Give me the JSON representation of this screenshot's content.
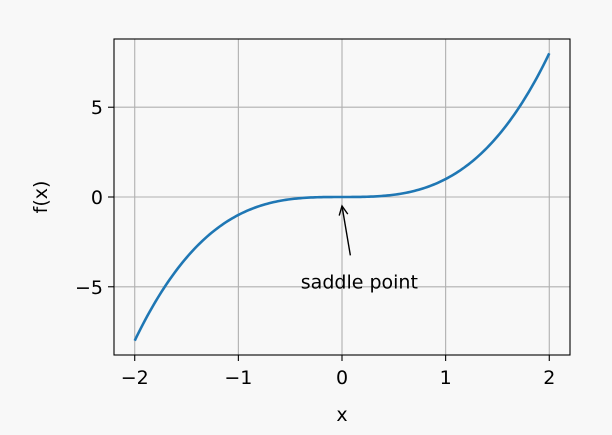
{
  "chart_data": {
    "type": "line",
    "title": "",
    "xlabel": "x",
    "ylabel": "f(x)",
    "xlim": [
      -2.2,
      2.2
    ],
    "ylim": [
      -8.8,
      8.8
    ],
    "grid": true,
    "xticks": [
      -2,
      -1,
      0,
      1,
      2
    ],
    "xtick_labels": [
      "−2",
      "−1",
      "0",
      "1",
      "2"
    ],
    "yticks": [
      -5,
      0,
      5
    ],
    "ytick_labels": [
      "−5",
      "0",
      "5"
    ],
    "series": [
      {
        "color": "#1f77b4",
        "function": "x^3",
        "x": [
          -2,
          -1.5,
          -1,
          -0.5,
          0,
          0.5,
          1,
          1.5,
          2
        ],
        "y": [
          -8,
          -3.375,
          -1,
          -0.125,
          0,
          0.125,
          1,
          3.375,
          8
        ]
      }
    ],
    "annotations": [
      {
        "text": "saddle point",
        "point": [
          0,
          0
        ],
        "text_xy": [
          0.1,
          -4.7
        ]
      }
    ]
  }
}
